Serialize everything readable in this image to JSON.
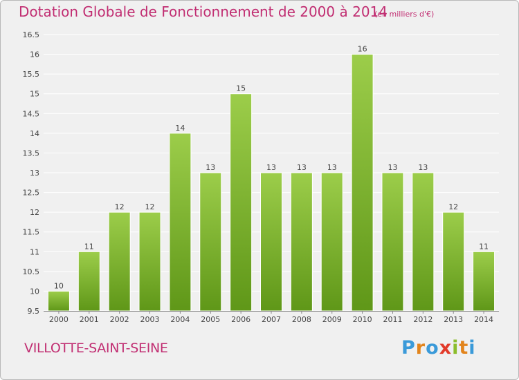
{
  "header": {
    "title": "Dotation Globale de Fonctionnement de 2000 à 2014",
    "unit": "(en milliers d'€)"
  },
  "footer": {
    "place": "VILLOTTE-SAINT-SEINE",
    "brand_letters": [
      {
        "char": "P",
        "color": "#3a9ad9"
      },
      {
        "char": "r",
        "color": "#e2841c"
      },
      {
        "char": "o",
        "color": "#3a9ad9"
      },
      {
        "char": "x",
        "color": "#e23a2a"
      },
      {
        "char": "i",
        "color": "#8bbd2b"
      },
      {
        "char": "t",
        "color": "#e2841c"
      },
      {
        "char": "i",
        "color": "#3a9ad9"
      }
    ]
  },
  "colors": {
    "bar_light": "#9ccd4a",
    "bar_dark": "#5f9718",
    "accent": "#c12e72",
    "grid": "#ffffff"
  },
  "chart_data": {
    "type": "bar",
    "categories": [
      "2000",
      "2001",
      "2002",
      "2003",
      "2004",
      "2005",
      "2006",
      "2007",
      "2008",
      "2009",
      "2010",
      "2011",
      "2012",
      "2013",
      "2014"
    ],
    "values": [
      10,
      11,
      12,
      12,
      14,
      13,
      15,
      13,
      13,
      13,
      16,
      13,
      13,
      12,
      11
    ],
    "ylim": [
      9.5,
      16.5
    ],
    "yticks": [
      "9.5",
      "10",
      "10.5",
      "11",
      "11.5",
      "12",
      "12.5",
      "13",
      "13.5",
      "14",
      "14.5",
      "15",
      "15.5",
      "16",
      "16.5"
    ],
    "grid": true,
    "xlabel": "",
    "ylabel": ""
  }
}
